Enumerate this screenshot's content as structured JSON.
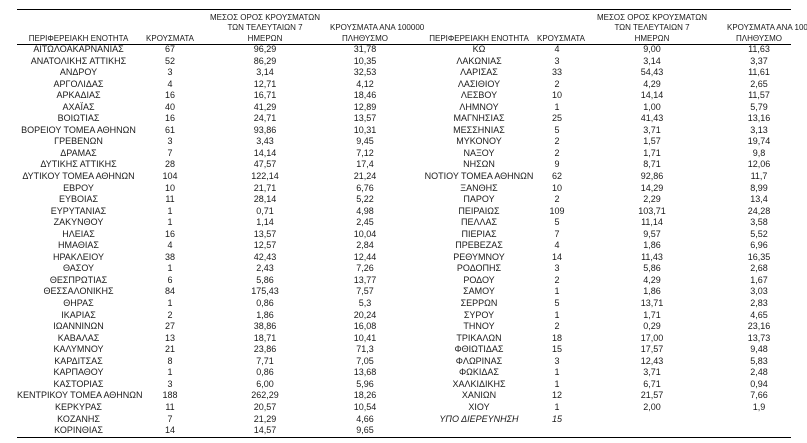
{
  "style": {
    "ink": "#1a1a1a",
    "background": "#ffffff",
    "rule_color": "#000000"
  },
  "table": {
    "headers": {
      "region": "ΠΕΡΙΦΕΡΕΙΑΚΗ ΕΝΟΤΗΤΑ",
      "cases": "ΚΡΟΥΣΜΑΤΑ",
      "avg7_line1": "ΜΕΣΟΣ ΟΡΟΣ ΚΡΟΥΣΜΑΤΩΝ",
      "avg7_line2": "ΤΩΝ ΤΕΛΕΥΤΑΙΩΝ 7",
      "avg7_line3": "ΗΜΕΡΩΝ",
      "per100k_line1": "ΚΡΟΥΣΜΑΤΑ ΑΝΑ 100000",
      "per100k_line2": "ΠΛΗΘΥΣΜΟ"
    },
    "left_rows": [
      [
        "ΑΙΤΩΛΟΑΚΑΡΝΑΝΙΑΣ",
        "67",
        "96,29",
        "31,78"
      ],
      [
        "ΑΝΑΤΟΛΙΚΗΣ ΑΤΤΙΚΗΣ",
        "52",
        "86,29",
        "10,35"
      ],
      [
        "ΑΝΔΡΟΥ",
        "3",
        "3,14",
        "32,53"
      ],
      [
        "ΑΡΓΟΛΙΔΑΣ",
        "4",
        "12,71",
        "4,12"
      ],
      [
        "ΑΡΚΑΔΙΑΣ",
        "16",
        "16,71",
        "18,46"
      ],
      [
        "ΑΧΑΪΑΣ",
        "40",
        "41,29",
        "12,89"
      ],
      [
        "ΒΟΙΩΤΙΑΣ",
        "16",
        "24,71",
        "13,57"
      ],
      [
        "ΒΟΡΕΙΟΥ ΤΟΜΕΑ ΑΘΗΝΩΝ",
        "61",
        "93,86",
        "10,31"
      ],
      [
        "ΓΡΕΒΕΝΩΝ",
        "3",
        "3,43",
        "9,45"
      ],
      [
        "ΔΡΑΜΑΣ",
        "7",
        "14,14",
        "7,12"
      ],
      [
        "ΔΥΤΙΚΗΣ ΑΤΤΙΚΗΣ",
        "28",
        "47,57",
        "17,4"
      ],
      [
        "ΔΥΤΙΚΟΥ ΤΟΜΕΑ ΑΘΗΝΩΝ",
        "104",
        "122,14",
        "21,24"
      ],
      [
        "ΕΒΡΟΥ",
        "10",
        "21,71",
        "6,76"
      ],
      [
        "ΕΥΒΟΙΑΣ",
        "11",
        "28,14",
        "5,22"
      ],
      [
        "ΕΥΡΥΤΑΝΙΑΣ",
        "1",
        "0,71",
        "4,98"
      ],
      [
        "ΖΑΚΥΝΘΟΥ",
        "1",
        "1,14",
        "2,45"
      ],
      [
        "ΗΛΕΙΑΣ",
        "16",
        "13,57",
        "10,04"
      ],
      [
        "ΗΜΑΘΙΑΣ",
        "4",
        "12,57",
        "2,84"
      ],
      [
        "ΗΡΑΚΛΕΙΟΥ",
        "38",
        "42,43",
        "12,44"
      ],
      [
        "ΘΑΣΟΥ",
        "1",
        "2,43",
        "7,26"
      ],
      [
        "ΘΕΣΠΡΩΤΙΑΣ",
        "6",
        "5,86",
        "13,77"
      ],
      [
        "ΘΕΣΣΑΛΟΝΙΚΗΣ",
        "84",
        "175,43",
        "7,57"
      ],
      [
        "ΘΗΡΑΣ",
        "1",
        "0,86",
        "5,3"
      ],
      [
        "ΙΚΑΡΙΑΣ",
        "2",
        "1,86",
        "20,24"
      ],
      [
        "ΙΩΑΝΝΙΝΩΝ",
        "27",
        "38,86",
        "16,08"
      ],
      [
        "ΚΑΒΑΛΑΣ",
        "13",
        "18,71",
        "10,41"
      ],
      [
        "ΚΑΛΥΜΝΟΥ",
        "21",
        "23,86",
        "71,3"
      ],
      [
        "ΚΑΡΔΙΤΣΑΣ",
        "8",
        "7,71",
        "7,05"
      ],
      [
        "ΚΑΡΠΑΘΟΥ",
        "1",
        "0,86",
        "13,68"
      ],
      [
        "ΚΑΣΤΟΡΙΑΣ",
        "3",
        "6,00",
        "5,96"
      ],
      [
        "ΚΕΝΤΡΙΚΟΥ ΤΟΜΕΑ ΑΘΗΝΩΝ",
        "188",
        "262,29",
        "18,26"
      ],
      [
        "ΚΕΡΚΥΡΑΣ",
        "11",
        "20,57",
        "10,54"
      ],
      [
        "ΚΟΖΑΝΗΣ",
        "7",
        "21,29",
        "4,66"
      ],
      [
        "ΚΟΡΙΝΘΙΑΣ",
        "14",
        "14,57",
        "9,65"
      ]
    ],
    "right_rows": [
      [
        "ΚΩ",
        "4",
        "9,00",
        "11,63"
      ],
      [
        "ΛΑΚΩΝΙΑΣ",
        "3",
        "3,14",
        "3,37"
      ],
      [
        "ΛΑΡΙΣΑΣ",
        "33",
        "54,43",
        "11,61"
      ],
      [
        "ΛΑΣΙΘΙΟΥ",
        "2",
        "4,29",
        "2,65"
      ],
      [
        "ΛΕΣΒΟΥ",
        "10",
        "14,14",
        "11,57"
      ],
      [
        "ΛΗΜΝΟΥ",
        "1",
        "1,00",
        "5,79"
      ],
      [
        "ΜΑΓΝΗΣΙΑΣ",
        "25",
        "41,43",
        "13,16"
      ],
      [
        "ΜΕΣΣΗΝΙΑΣ",
        "5",
        "3,71",
        "3,13"
      ],
      [
        "ΜΥΚΟΝΟΥ",
        "2",
        "1,57",
        "19,74"
      ],
      [
        "ΝΑΞΟΥ",
        "2",
        "1,71",
        "9,8"
      ],
      [
        "ΝΗΣΩΝ",
        "9",
        "8,71",
        "12,06"
      ],
      [
        "ΝΟΤΙΟΥ ΤΟΜΕΑ ΑΘΗΝΩΝ",
        "62",
        "92,86",
        "11,7"
      ],
      [
        "ΞΑΝΘΗΣ",
        "10",
        "14,29",
        "8,99"
      ],
      [
        "ΠΑΡΟΥ",
        "2",
        "2,29",
        "13,4"
      ],
      [
        "ΠΕΙΡΑΙΩΣ",
        "109",
        "103,71",
        "24,28"
      ],
      [
        "ΠΕΛΛΑΣ",
        "5",
        "11,14",
        "3,58"
      ],
      [
        "ΠΙΕΡΙΑΣ",
        "7",
        "9,57",
        "5,52"
      ],
      [
        "ΠΡΕΒΕΖΑΣ",
        "4",
        "1,86",
        "6,96"
      ],
      [
        "ΡΕΘΥΜΝΟΥ",
        "14",
        "11,43",
        "16,35"
      ],
      [
        "ΡΟΔΟΠΗΣ",
        "3",
        "5,86",
        "2,68"
      ],
      [
        "ΡΟΔΟΥ",
        "2",
        "4,29",
        "1,67"
      ],
      [
        "ΣΑΜΟΥ",
        "1",
        "1,86",
        "3,03"
      ],
      [
        "ΣΕΡΡΩΝ",
        "5",
        "13,71",
        "2,83"
      ],
      [
        "ΣΥΡΟΥ",
        "1",
        "1,71",
        "4,65"
      ],
      [
        "ΤΗΝΟΥ",
        "2",
        "0,29",
        "23,16"
      ],
      [
        "ΤΡΙΚΑΛΩΝ",
        "18",
        "17,00",
        "13,73"
      ],
      [
        "ΦΘΙΩΤΙΔΑΣ",
        "15",
        "17,57",
        "9,48"
      ],
      [
        "ΦΛΩΡΙΝΑΣ",
        "3",
        "12,43",
        "5,83"
      ],
      [
        "ΦΩΚΙΔΑΣ",
        "1",
        "3,71",
        "2,48"
      ],
      [
        "ΧΑΛΚΙΔΙΚΗΣ",
        "1",
        "6,71",
        "0,94"
      ],
      [
        "ΧΑΝΙΩΝ",
        "12",
        "21,57",
        "7,66"
      ],
      [
        "ΧΙΟΥ",
        "1",
        "2,00",
        "1,9"
      ]
    ],
    "under_investigation": {
      "label": "ΥΠΟ ΔΙΕΡΕΥΝΗΣΗ",
      "cases": "15"
    }
  }
}
